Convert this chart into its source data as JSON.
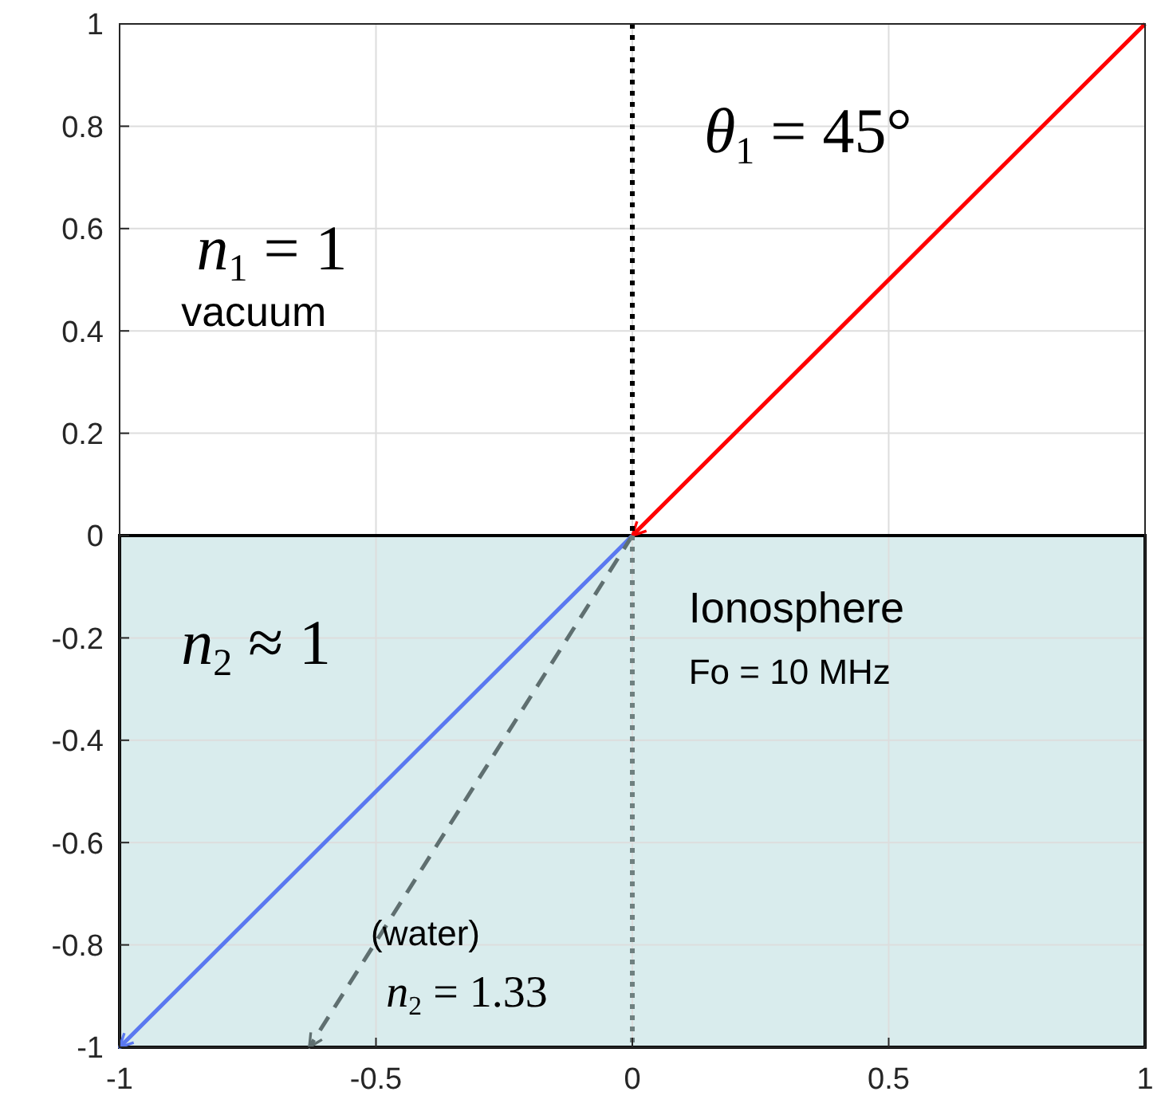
{
  "chart_data": {
    "type": "line",
    "xlim": [
      -1,
      1
    ],
    "xticks": [
      -1,
      -0.5,
      0,
      0.5,
      1
    ],
    "ylim": [
      -1,
      1
    ],
    "yticks": [
      -1,
      -0.8,
      -0.6,
      -0.4,
      -0.2,
      0,
      0.2,
      0.4,
      0.6,
      0.8,
      1
    ],
    "grid": true,
    "bands": [
      {
        "axis": "y",
        "from": -1,
        "to": 0,
        "color": "#d9eced"
      }
    ],
    "series": [
      {
        "color": "#ff0000",
        "x": [
          1,
          0
        ],
        "values": [
          1,
          0
        ],
        "line_style": "solid"
      },
      {
        "color": "#5a78f0",
        "x": [
          0,
          -1
        ],
        "values": [
          0,
          -1
        ],
        "line_style": "solid"
      },
      {
        "color": "#5f6f70",
        "x": [
          0,
          -0.63
        ],
        "values": [
          0,
          -1
        ],
        "line_style": "dashed"
      },
      {
        "color": "#000000",
        "x": [
          0,
          0
        ],
        "values": [
          1,
          0
        ],
        "line_style": "dotted"
      },
      {
        "color": "#6f8080",
        "x": [
          0,
          0
        ],
        "values": [
          0,
          -1
        ],
        "line_style": "dotted"
      }
    ],
    "annotations": [
      "θ$_{1}$ = 45°",
      "n$_{1}$ = 1",
      "vacuum",
      "n$_{2}$ ≈ 1",
      "Ionosphere",
      "Fo = 10 MHz",
      "(water)",
      "n$_{2}$ = 1.33"
    ]
  }
}
